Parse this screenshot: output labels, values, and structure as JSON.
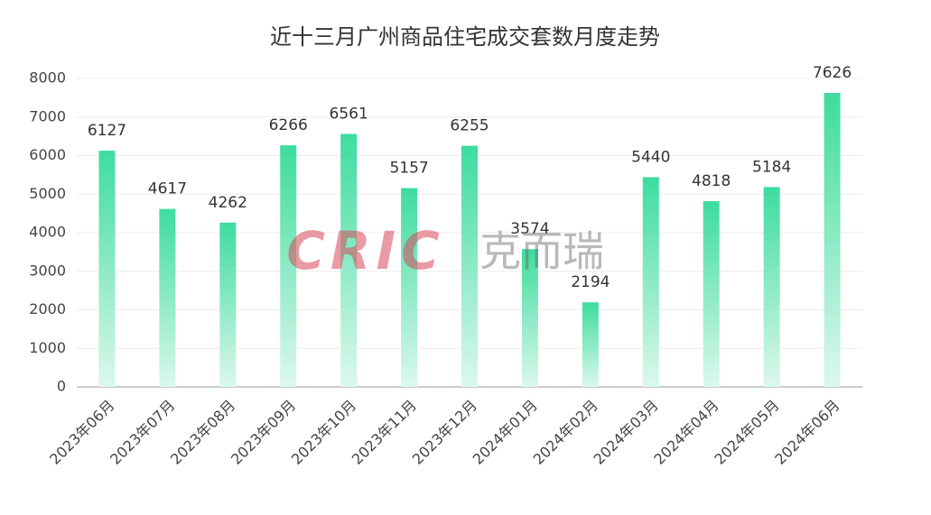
{
  "chart_data": {
    "type": "bar",
    "title": "近十三月广州商品住宅成交套数月度走势",
    "categories": [
      "2023年06月",
      "2023年07月",
      "2023年08月",
      "2023年09月",
      "2023年10月",
      "2023年11月",
      "2023年12月",
      "2024年01月",
      "2024年02月",
      "2024年03月",
      "2024年04月",
      "2024年05月",
      "2024年06月"
    ],
    "values": [
      6127,
      4617,
      4262,
      6266,
      6561,
      5157,
      6255,
      3574,
      2194,
      5440,
      4818,
      5184,
      7626
    ],
    "color": "#3ddc9f",
    "ylim": [
      0,
      8000
    ],
    "yticks": [
      0,
      1000,
      2000,
      3000,
      4000,
      5000,
      6000,
      7000,
      8000
    ],
    "grid": true,
    "watermark_logo": "CRIC",
    "watermark_text": "克而瑞"
  }
}
